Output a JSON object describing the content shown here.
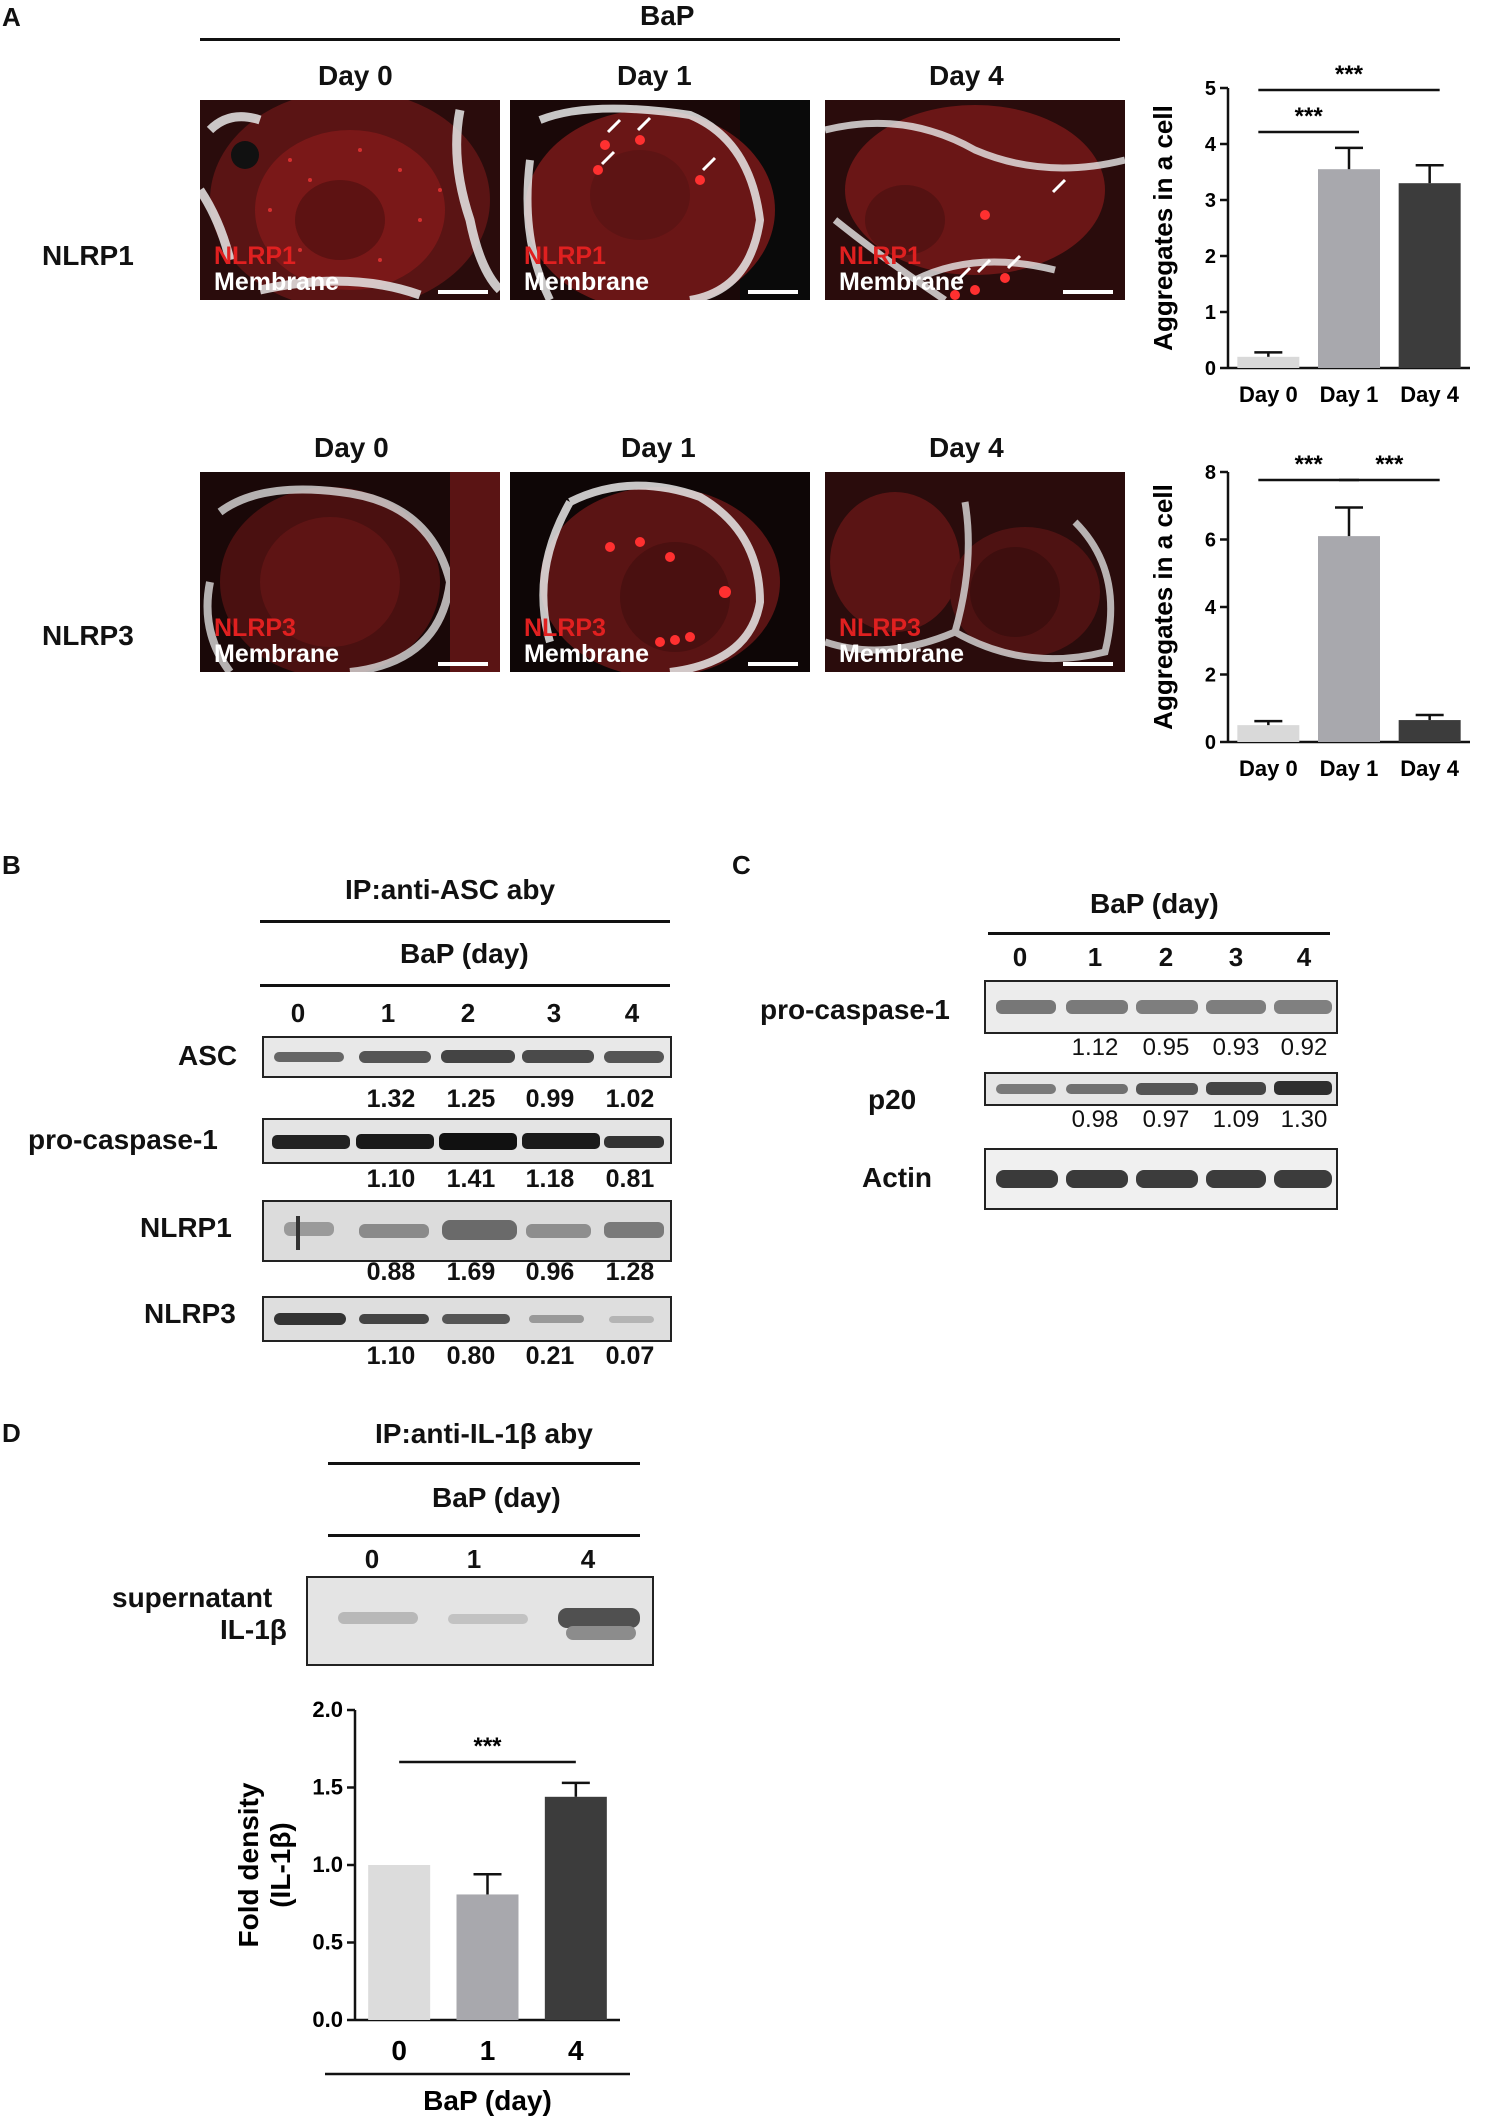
{
  "panel_a": {
    "letter": "A",
    "treatment_header": "BaP",
    "row1_label": "NLRP1",
    "row2_label": "NLRP3",
    "day_labels": [
      "Day 0",
      "Day 1",
      "Day 4"
    ],
    "micro_labels_row1": {
      "protein": "NLRP1",
      "membrane": "Membrane"
    },
    "micro_labels_row2": {
      "protein": "NLRP3",
      "membrane": "Membrane"
    }
  },
  "panel_b": {
    "letter": "B",
    "ip_label": "IP:anti-ASC aby",
    "treatment_label": "BaP (day)",
    "lanes": [
      "0",
      "1",
      "2",
      "3",
      "4"
    ],
    "rows": [
      {
        "name": "ASC",
        "values": [
          "1.32",
          "1.25",
          "0.99",
          "1.02"
        ]
      },
      {
        "name": "pro-caspase-1",
        "values": [
          "1.10",
          "1.41",
          "1.18",
          "0.81"
        ]
      },
      {
        "name": "NLRP1",
        "values": [
          "0.88",
          "1.69",
          "0.96",
          "1.28"
        ]
      },
      {
        "name": "NLRP3",
        "values": [
          "1.10",
          "0.80",
          "0.21",
          "0.07"
        ]
      }
    ]
  },
  "panel_c": {
    "letter": "C",
    "treatment_label": "BaP (day)",
    "lanes": [
      "0",
      "1",
      "2",
      "3",
      "4"
    ],
    "rows": [
      {
        "name": "pro-caspase-1",
        "values": [
          "1.12",
          "0.95",
          "0.93",
          "0.92"
        ]
      },
      {
        "name": "p20",
        "values": [
          "0.98",
          "0.97",
          "1.09",
          "1.30"
        ]
      },
      {
        "name": "Actin",
        "values": []
      }
    ]
  },
  "panel_d": {
    "letter": "D",
    "ip_label": "IP:anti-IL-1β aby",
    "treatment_label": "BaP (day)",
    "lanes": [
      "0",
      "1",
      "4"
    ],
    "blot_label_line1": "supernatant",
    "blot_label_line2": "IL-1β"
  },
  "chart_data": [
    {
      "type": "bar",
      "categories": [
        "Day 0",
        "Day 1",
        "Day 4"
      ],
      "values": [
        0.2,
        3.55,
        3.3
      ],
      "errors": [
        0.08,
        0.38,
        0.32
      ],
      "colors": [
        "#d9d9d9",
        "#a8a8ad",
        "#3c3c3c"
      ],
      "ylabel": "Aggregates in a cell",
      "ylim": [
        0,
        5
      ],
      "yticks": [
        "0",
        "1",
        "2",
        "3",
        "4",
        "5"
      ],
      "significance": [
        {
          "from": "Day 0",
          "to": "Day 1",
          "label": "***"
        },
        {
          "from": "Day 0",
          "to": "Day 4",
          "label": "***"
        }
      ]
    },
    {
      "type": "bar",
      "categories": [
        "Day 0",
        "Day 1",
        "Day 4"
      ],
      "values": [
        0.5,
        6.1,
        0.65
      ],
      "errors": [
        0.12,
        0.85,
        0.15
      ],
      "colors": [
        "#d9d9d9",
        "#a8a8ad",
        "#3c3c3c"
      ],
      "ylabel": "Aggregates in a cell",
      "ylim": [
        0,
        8
      ],
      "yticks": [
        "0",
        "2",
        "4",
        "6",
        "8"
      ],
      "significance": [
        {
          "from": "Day 0",
          "to": "Day 1",
          "label": "***"
        },
        {
          "from": "Day 1",
          "to": "Day 4",
          "label": "***"
        }
      ]
    },
    {
      "type": "bar",
      "categories": [
        "0",
        "1",
        "4"
      ],
      "values": [
        1.0,
        0.81,
        1.44
      ],
      "errors": [
        0,
        0.13,
        0.09
      ],
      "colors": [
        "#dcdcdc",
        "#a8a8ad",
        "#3c3c3c"
      ],
      "ylabel": "Fold density (IL-1β)",
      "xlabel": "BaP (day)",
      "ylim": [
        0,
        2.0
      ],
      "yticks": [
        "0.0",
        "0.5",
        "1.0",
        "1.5",
        "2.0"
      ],
      "significance": [
        {
          "from": "0",
          "to": "4",
          "label": "***"
        }
      ]
    }
  ]
}
